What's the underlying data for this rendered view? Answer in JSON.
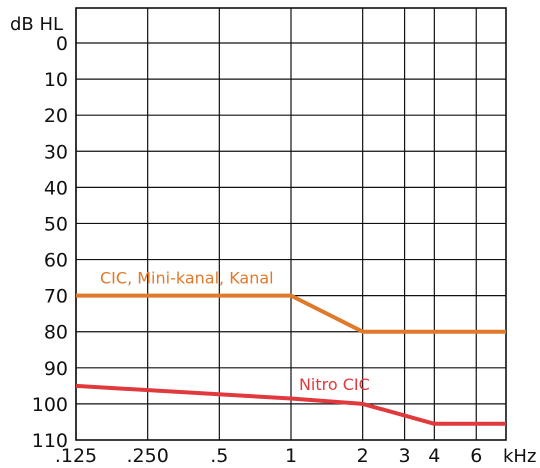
{
  "chart_data": {
    "type": "line",
    "title": "",
    "ylabel": "dB HL",
    "xlabel": "kHz",
    "y_reversed": true,
    "ylim": [
      0,
      110
    ],
    "y_ticks": [
      0,
      10,
      20,
      30,
      40,
      50,
      60,
      70,
      80,
      90,
      100,
      110
    ],
    "x_scale": "log",
    "x_ticks": [
      {
        "value": 0.125,
        "label": ".125"
      },
      {
        "value": 0.25,
        "label": ".250"
      },
      {
        "value": 0.5,
        "label": ".5"
      },
      {
        "value": 1,
        "label": "1"
      },
      {
        "value": 2,
        "label": "2"
      },
      {
        "value": 3,
        "label": "3"
      },
      {
        "value": 4,
        "label": "4"
      },
      {
        "value": 6,
        "label": "6"
      }
    ],
    "grid": true,
    "series": [
      {
        "name": "CIC, Mini-kanal, Kanal",
        "color": "#e07a2a",
        "points": [
          [
            0.125,
            70
          ],
          [
            1,
            70
          ],
          [
            2,
            80
          ],
          [
            8,
            80
          ]
        ]
      },
      {
        "name": "Nitro CIC",
        "color": "#e03a3e",
        "points": [
          [
            0.125,
            95
          ],
          [
            1,
            98.5
          ],
          [
            2,
            100
          ],
          [
            4,
            105.5
          ],
          [
            8,
            105.5
          ]
        ]
      }
    ]
  }
}
